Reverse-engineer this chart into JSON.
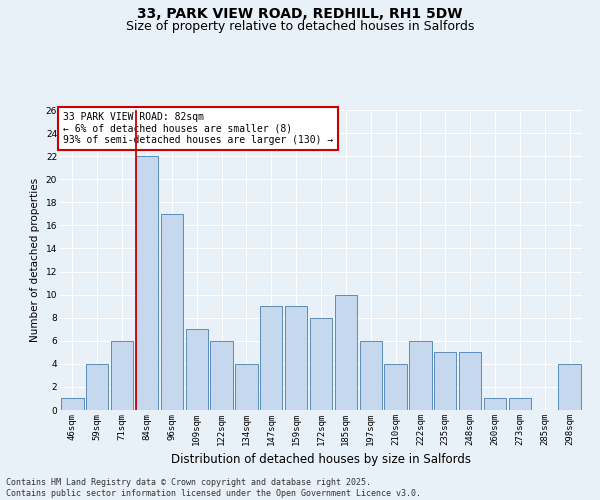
{
  "title": "33, PARK VIEW ROAD, REDHILL, RH1 5DW",
  "subtitle": "Size of property relative to detached houses in Salfords",
  "xlabel": "Distribution of detached houses by size in Salfords",
  "ylabel": "Number of detached properties",
  "categories": [
    "46sqm",
    "59sqm",
    "71sqm",
    "84sqm",
    "96sqm",
    "109sqm",
    "122sqm",
    "134sqm",
    "147sqm",
    "159sqm",
    "172sqm",
    "185sqm",
    "197sqm",
    "210sqm",
    "222sqm",
    "235sqm",
    "248sqm",
    "260sqm",
    "273sqm",
    "285sqm",
    "298sqm"
  ],
  "values": [
    1,
    4,
    6,
    22,
    17,
    7,
    6,
    4,
    9,
    9,
    8,
    10,
    6,
    4,
    6,
    5,
    5,
    1,
    1,
    0,
    4
  ],
  "bar_color": "#c5d8ed",
  "bar_edge_color": "#5b8db8",
  "red_line_index": 3,
  "ylim": [
    0,
    26
  ],
  "yticks": [
    0,
    2,
    4,
    6,
    8,
    10,
    12,
    14,
    16,
    18,
    20,
    22,
    24,
    26
  ],
  "annotation_text": "33 PARK VIEW ROAD: 82sqm\n← 6% of detached houses are smaller (8)\n93% of semi-detached houses are larger (130) →",
  "annotation_box_color": "#ffffff",
  "annotation_box_edge": "#cc0000",
  "bg_color": "#e8f0f8",
  "grid_color": "#ffffff",
  "footer_text": "Contains HM Land Registry data © Crown copyright and database right 2025.\nContains public sector information licensed under the Open Government Licence v3.0.",
  "title_fontsize": 10,
  "subtitle_fontsize": 9,
  "xlabel_fontsize": 8.5,
  "ylabel_fontsize": 7.5,
  "tick_fontsize": 6.5,
  "annotation_fontsize": 7,
  "footer_fontsize": 6
}
